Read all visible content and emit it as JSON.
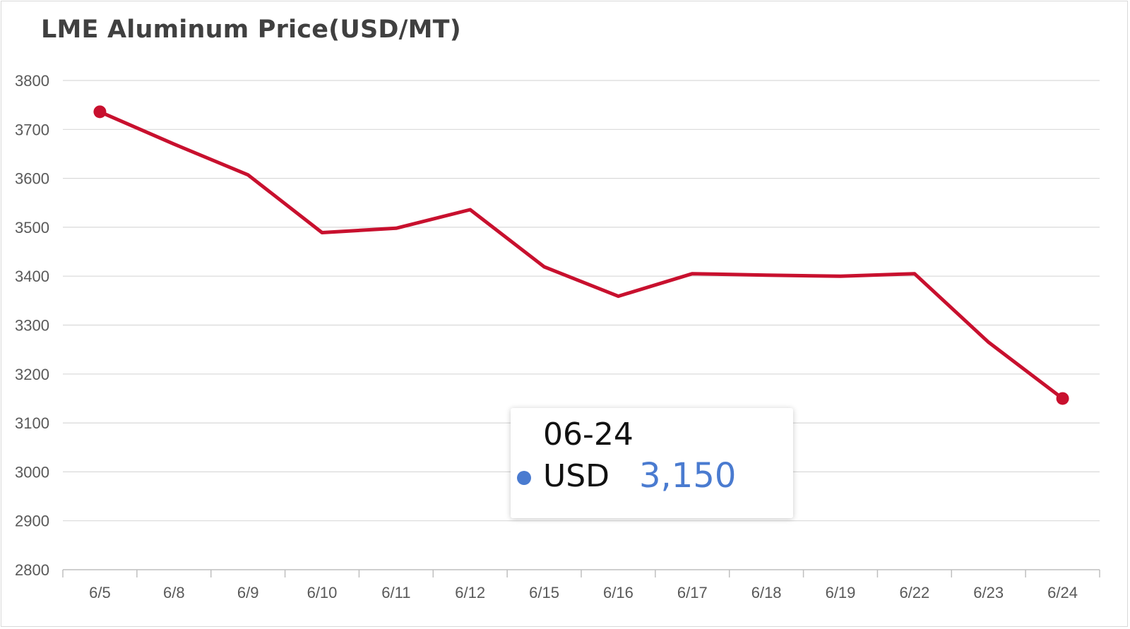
{
  "colors": {
    "line": "#c8102e",
    "grid": "#d9d9d9",
    "axis": "#bfbfbf",
    "tooltip_accent": "#4a7bd0"
  },
  "chart_data": {
    "type": "line",
    "title": "LME Aluminum Price(USD/MT)",
    "categories": [
      "6/5",
      "6/8",
      "6/9",
      "6/10",
      "6/11",
      "6/12",
      "6/15",
      "6/16",
      "6/17",
      "6/18",
      "6/19",
      "6/22",
      "6/23",
      "6/24"
    ],
    "series": [
      {
        "name": "USD",
        "values": [
          3736,
          3670,
          3607,
          3489,
          3498,
          3536,
          3419,
          3359,
          3405,
          3402,
          3400,
          3405,
          3265,
          3150
        ]
      }
    ],
    "ylim": [
      2800,
      3800
    ],
    "yticks": [
      2800,
      2900,
      3000,
      3100,
      3200,
      3300,
      3400,
      3500,
      3600,
      3700,
      3800
    ],
    "grid": true,
    "markers_on": [
      "6/5",
      "6/24"
    ]
  },
  "tooltip": {
    "date": "06-24",
    "series_name": "USD",
    "value": "3,150"
  }
}
